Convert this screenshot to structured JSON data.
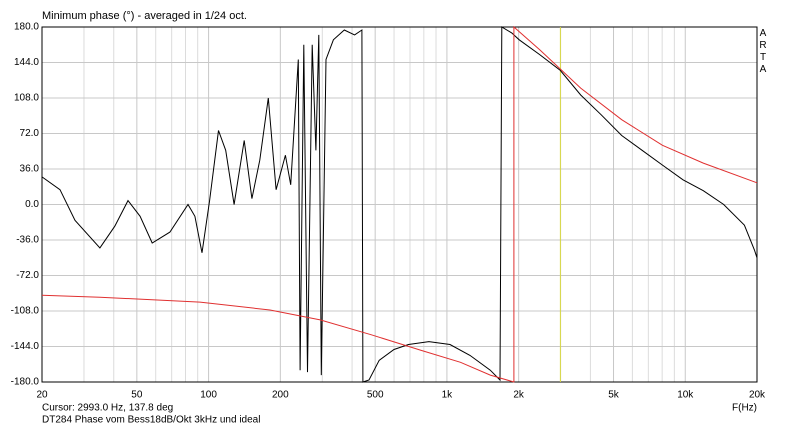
{
  "chart_data": {
    "type": "line",
    "title": "Minimum phase (°) - averaged in 1/24 oct.",
    "brand": "ARTA",
    "x_label": "F(Hz)",
    "cursor_text": "Cursor: 2993.0 Hz, 137.8 deg",
    "caption": "DT284 Phase vom Bess18dB/Okt 3kHz und ideal",
    "x_scale": "log",
    "grid": true,
    "xlim": [
      20,
      20000
    ],
    "ylim": [
      -180,
      180
    ],
    "xticks": [
      20,
      50,
      100,
      200,
      500,
      {
        "value": 1000,
        "label": "1k"
      },
      {
        "value": 2000,
        "label": "2k"
      },
      {
        "value": 5000,
        "label": "5k"
      },
      {
        "value": 10000,
        "label": "10k"
      },
      {
        "value": 20000,
        "label": "20k"
      }
    ],
    "x_minor_ticks": [
      30,
      40,
      60,
      70,
      80,
      90,
      300,
      400,
      600,
      700,
      800,
      900,
      3000,
      4000,
      6000,
      7000,
      8000,
      9000
    ],
    "yticks": [
      {
        "value": 180,
        "label": "180.0"
      },
      {
        "value": 144,
        "label": "144.0"
      },
      {
        "value": 108,
        "label": "108.0"
      },
      {
        "value": 72,
        "label": "72.0"
      },
      {
        "value": 36,
        "label": "36.0"
      },
      {
        "value": 0,
        "label": "0.0"
      },
      {
        "value": -36,
        "label": "-36.0"
      },
      {
        "value": -72,
        "label": "-72.0"
      },
      {
        "value": -108,
        "label": "-108.0"
      },
      {
        "value": -144,
        "label": "-144.0"
      },
      {
        "value": -180,
        "label": "-180.0"
      }
    ],
    "cursor": {
      "x": 2993,
      "color": "#d8d840"
    },
    "series": [
      {
        "color": "#000000",
        "x": [
          20,
          23.8,
          27.5,
          35,
          40.4,
          45.9,
          51.6,
          58,
          68.8,
          82,
          87.6,
          93.8,
          101,
          110,
          118,
          128,
          141,
          152,
          164,
          178,
          192,
          210,
          221,
          238,
          242,
          251,
          260,
          272,
          282,
          290,
          297,
          311,
          334,
          371,
          410,
          440,
          444,
          471,
          520,
          600,
          690,
          840,
          1030,
          1250,
          1520,
          1670,
          1700,
          1870,
          2010,
          2450,
          2990,
          3640,
          4440,
          5410,
          6590,
          8030,
          9780,
          11900,
          14500,
          17700,
          19500,
          20000
        ],
        "values": [
          28,
          15,
          -16,
          -44,
          -22,
          4,
          -12,
          -39,
          -28,
          0,
          -12,
          -49,
          4,
          75,
          55,
          0,
          65,
          6,
          45,
          108,
          15,
          50,
          20,
          147,
          -168,
          162,
          -170,
          162,
          55,
          172,
          -173,
          147,
          167,
          177,
          172,
          177,
          -180,
          -178,
          -158,
          -147,
          -142,
          -139,
          -142,
          -153,
          -168,
          -178,
          180,
          174,
          167,
          152,
          136,
          111,
          91,
          70,
          55,
          40,
          25,
          14,
          0,
          -21,
          -46,
          -54
        ]
      },
      {
        "color": "#e03030",
        "x": [
          20,
          35,
          92,
          181,
          294,
          480,
          780,
          1140,
          1520,
          1910,
          1910,
          2450,
          3640,
          5410,
          8030,
          11900,
          20000
        ],
        "values": [
          -92,
          -94,
          -99,
          -107,
          -117,
          -132,
          -148,
          -160,
          -173,
          -180,
          180,
          157,
          118,
          86,
          60,
          42,
          22
        ]
      }
    ]
  }
}
